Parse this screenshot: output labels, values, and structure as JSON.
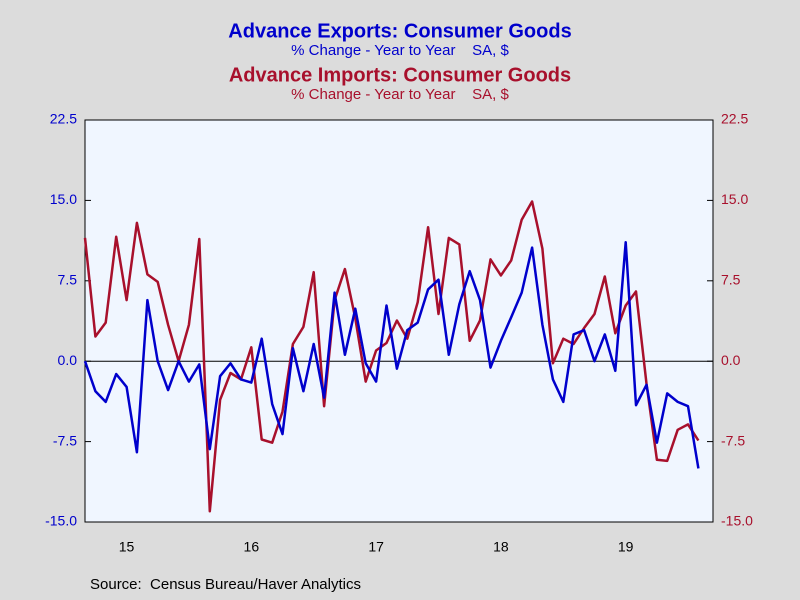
{
  "chart_data": {
    "type": "line",
    "source": "Source:  Census Bureau/Haver Analytics",
    "x": [
      15.167,
      15.25,
      15.333,
      15.417,
      15.5,
      15.583,
      15.667,
      15.75,
      15.833,
      15.917,
      16.0,
      16.083,
      16.167,
      16.25,
      16.333,
      16.417,
      16.5,
      16.583,
      16.667,
      16.75,
      16.833,
      16.917,
      17.0,
      17.083,
      17.167,
      17.25,
      17.333,
      17.417,
      17.5,
      17.583,
      17.667,
      17.75,
      17.833,
      17.917,
      18.0,
      18.083,
      18.167,
      18.25,
      18.333,
      18.417,
      18.5,
      18.583,
      18.667,
      18.75,
      18.833,
      18.917,
      19.0,
      19.083,
      19.167,
      19.25,
      19.333,
      19.417,
      19.5,
      19.583,
      19.667,
      19.75,
      19.833,
      19.917,
      20.0,
      20.083
    ],
    "xlim": [
      15.167,
      20.2
    ],
    "xticks": [
      {
        "value": 15.5,
        "label": "15"
      },
      {
        "value": 16.5,
        "label": "16"
      },
      {
        "value": 17.5,
        "label": "17"
      },
      {
        "value": 18.5,
        "label": "18"
      },
      {
        "value": 19.5,
        "label": "19"
      }
    ],
    "ylim": [
      -15,
      22.5
    ],
    "yticks": [
      {
        "value": -15,
        "label": "-15.0"
      },
      -7.5,
      {
        "value": 0,
        "label": "0.0"
      },
      7.5,
      {
        "value": 15,
        "label": "15.0"
      },
      22.5
    ],
    "y2lim": [
      -15,
      22.5
    ],
    "y2ticks": [
      {
        "value": -15,
        "label": "-15.0"
      },
      -7.5,
      {
        "value": 0,
        "label": "0.0"
      },
      7.5,
      {
        "value": 15,
        "label": "15.0"
      },
      22.5
    ],
    "series": [
      {
        "name": "Advance Exports: Consumer Goods",
        "subtitle": "% Change - Year to Year    SA, $",
        "color": "#0000cc",
        "values": [
          0,
          -2.8,
          -3.8,
          -1.2,
          -2.4,
          -8.5,
          5.7,
          0,
          -2.7,
          0,
          -1.9,
          -0.3,
          -8.2,
          -1.4,
          -0.2,
          -1.7,
          -2.0,
          2.1,
          -4.0,
          -6.8,
          1.2,
          -2.8,
          1.6,
          -3.4,
          6.4,
          0.6,
          4.9,
          -0.2,
          -1.9,
          5.2,
          -0.7,
          2.9,
          3.6,
          6.7,
          7.6,
          0.6,
          5.3,
          8.4,
          5.7,
          -0.6,
          1.9,
          4.1,
          6.4,
          10.6,
          3.4,
          -1.7,
          -3.8,
          2.5,
          2.9,
          0,
          2.5,
          -0.9,
          11.1,
          -4.1,
          -2.2,
          -7.6,
          -3.0,
          -3.8,
          -4.2,
          -10.0
        ]
      },
      {
        "name": "Advance Imports: Consumer Goods",
        "subtitle": "% Change - Year to Year    SA, $",
        "color": "#a8102c",
        "axis": "y2",
        "values": [
          11.5,
          2.3,
          3.6,
          11.6,
          5.7,
          12.9,
          8.1,
          7.4,
          3.4,
          0,
          3.4,
          11.4,
          -14.0,
          -3.6,
          -1.1,
          -1.7,
          1.3,
          -7.3,
          -7.6,
          -4.7,
          1.6,
          3.2,
          8.3,
          -4.2,
          5.7,
          8.6,
          4.0,
          -1.9,
          1.0,
          1.7,
          3.8,
          2.1,
          5.5,
          12.5,
          4.4,
          11.5,
          10.9,
          1.9,
          3.8,
          9.5,
          8.0,
          9.4,
          13.2,
          14.9,
          10.5,
          -0.2,
          2.1,
          1.6,
          3.1,
          4.4,
          7.9,
          2.6,
          5.2,
          6.5,
          -2.1,
          -9.2,
          -9.3,
          -6.4,
          -5.9,
          -7.4
        ]
      }
    ]
  }
}
